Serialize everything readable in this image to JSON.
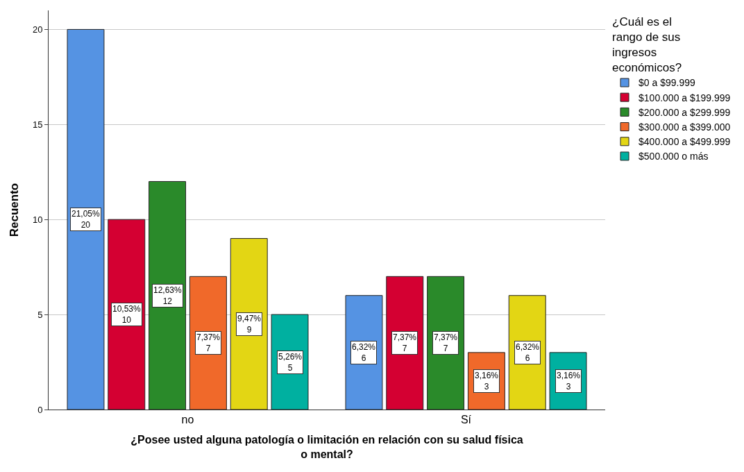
{
  "chart_data": {
    "type": "bar",
    "xlabel": "¿Posee usted alguna patología o limitación en relación con su salud física o mental?",
    "ylabel": "Recuento",
    "legend_title": "¿Cuál es el rango de sus ingresos económicos?",
    "categories": [
      "no",
      "Sí"
    ],
    "series": [
      {
        "name": "$0 a $99.999",
        "color": "#5593e3",
        "values": [
          20,
          6
        ],
        "value_labels": [
          "21,05%\n20",
          "6,32%\n6"
        ]
      },
      {
        "name": "$100.000 a $199.999",
        "color": "#d40032",
        "values": [
          10,
          7
        ],
        "value_labels": [
          "10,53%\n10",
          "7,37%\n7"
        ]
      },
      {
        "name": "$200.000 a $299.999",
        "color": "#2a8a2a",
        "values": [
          12,
          7
        ],
        "value_labels": [
          "12,63%\n12",
          "7,37%\n7"
        ]
      },
      {
        "name": "$300.000 a $399.000",
        "color": "#f0692a",
        "values": [
          7,
          3
        ],
        "value_labels": [
          "7,37%\n7",
          "3,16%\n3"
        ]
      },
      {
        "name": "$400.000 a $499.999",
        "color": "#e3d614",
        "values": [
          9,
          6
        ],
        "value_labels": [
          "9,47%\n9",
          "6,32%\n6"
        ]
      },
      {
        "name": "$500.000 o más",
        "color": "#00b0a0",
        "values": [
          5,
          3
        ],
        "value_labels": [
          "5,26%\n5",
          "3,16%\n3"
        ]
      }
    ],
    "ylim": [
      0,
      21
    ],
    "yticks": [
      0,
      5,
      10,
      15,
      20
    ],
    "grid": "y",
    "legend": "top right"
  }
}
